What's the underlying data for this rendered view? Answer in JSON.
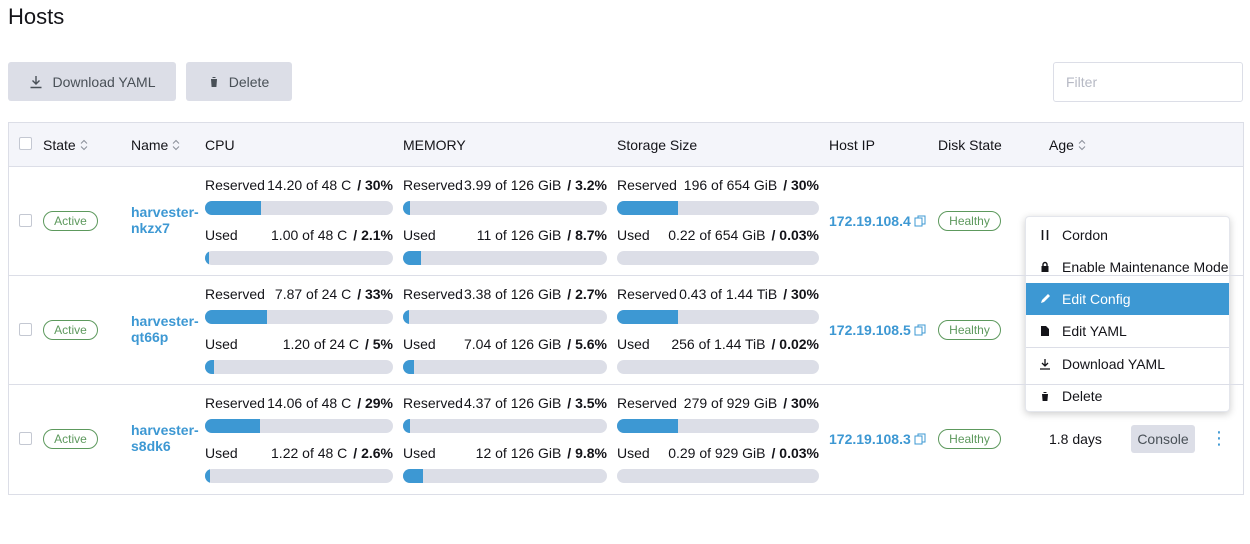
{
  "header": {
    "title": "Hosts"
  },
  "toolbar": {
    "buttons": [
      "Download YAML",
      "Delete"
    ],
    "filter_placeholder": "Filter"
  },
  "table": {
    "columns": [
      "State",
      "Name",
      "CPU",
      "MEMORY",
      "Storage Size",
      "Host IP",
      "Disk State",
      "Age"
    ],
    "rows": [
      {
        "state": "Active",
        "name": "harvester-nkzx7",
        "host_ip": "172.19.108.4",
        "disk_state": "Healthy",
        "cpu": [
          {
            "label": "Reserved",
            "amount": "14.20 of 48 C",
            "percent": {
              "value": 30,
              "label": "/ 30%"
            }
          },
          {
            "label": "Used",
            "amount": "1.00 of 48 C",
            "percent": {
              "value": 2.1,
              "label": "/ 2.1%"
            }
          }
        ],
        "memory": [
          {
            "label": "Reserved",
            "amount": "3.99 of 126 GiB",
            "percent": {
              "value": 3.2,
              "label": "/ 3.2%"
            }
          },
          {
            "label": "Used",
            "amount": "11 of 126 GiB",
            "percent": {
              "value": 8.7,
              "label": "/ 8.7%"
            }
          }
        ],
        "storage": [
          {
            "label": "Reserved",
            "amount": "196 of 654 GiB",
            "percent": {
              "value": 30,
              "label": "/ 30%"
            }
          },
          {
            "label": "Used",
            "amount": "0.22 of 654 GiB",
            "percent": {
              "value": 0.03,
              "label": "/ 0.03%"
            }
          }
        ]
      },
      {
        "state": "Active",
        "name": "harvester-qt66p",
        "host_ip": "172.19.108.5",
        "disk_state": "Healthy",
        "cpu": [
          {
            "label": "Reserved",
            "amount": "7.87 of 24 C",
            "percent": {
              "value": 33,
              "label": "/ 33%"
            }
          },
          {
            "label": "Used",
            "amount": "1.20 of 24 C",
            "percent": {
              "value": 5,
              "label": "/ 5%"
            }
          }
        ],
        "memory": [
          {
            "label": "Reserved",
            "amount": "3.38 of 126 GiB",
            "percent": {
              "value": 2.7,
              "label": "/ 2.7%"
            }
          },
          {
            "label": "Used",
            "amount": "7.04 of 126 GiB",
            "percent": {
              "value": 5.6,
              "label": "/ 5.6%"
            }
          }
        ],
        "storage": [
          {
            "label": "Reserved",
            "amount": "0.43 of 1.44 TiB",
            "percent": {
              "value": 30,
              "label": "/ 30%"
            }
          },
          {
            "label": "Used",
            "amount": "256 of 1.44 TiB",
            "percent": {
              "value": 0.02,
              "label": "/ 0.02%"
            }
          }
        ]
      },
      {
        "state": "Active",
        "name": "harvester-s8dk6",
        "host_ip": "172.19.108.3",
        "disk_state": "Healthy",
        "age": "1.8 days",
        "action": "Console",
        "cpu": [
          {
            "label": "Reserved",
            "amount": "14.06 of 48 C",
            "percent": {
              "value": 29,
              "label": "/ 29%"
            }
          },
          {
            "label": "Used",
            "amount": "1.22 of 48 C",
            "percent": {
              "value": 2.6,
              "label": "/ 2.6%"
            }
          }
        ],
        "memory": [
          {
            "label": "Reserved",
            "amount": "4.37 of 126 GiB",
            "percent": {
              "value": 3.5,
              "label": "/ 3.5%"
            }
          },
          {
            "label": "Used",
            "amount": "12 of 126 GiB",
            "percent": {
              "value": 9.8,
              "label": "/ 9.8%"
            }
          }
        ],
        "storage": [
          {
            "label": "Reserved",
            "amount": "279 of 929 GiB",
            "percent": {
              "value": 30,
              "label": "/ 30%"
            }
          },
          {
            "label": "Used",
            "amount": "0.29 of 929 GiB",
            "percent": {
              "value": 0.03,
              "label": "/ 0.03%"
            }
          }
        ]
      }
    ]
  },
  "context_menu": {
    "items": [
      "Cordon",
      "Enable Maintenance Mode",
      "Edit Config",
      "Edit YAML",
      "Download YAML",
      "Delete"
    ]
  }
}
